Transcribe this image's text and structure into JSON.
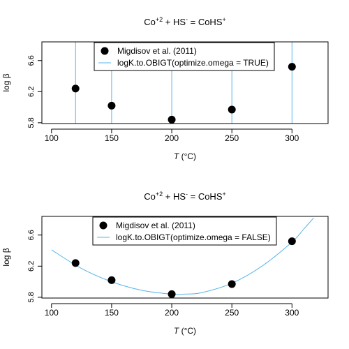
{
  "chart_data": [
    {
      "type": "scatter",
      "title": {
        "base1": "Co",
        "sup1": "+2",
        "mid": " + HS",
        "sup2": "-",
        "mid2": " = CoHS",
        "sup3": "+"
      },
      "xlabel": {
        "italic": "T",
        "rest": " (°C)"
      },
      "ylabel": "log β",
      "xlim": [
        92,
        330
      ],
      "ylim": [
        5.79,
        6.84
      ],
      "xticks": [
        "100",
        "150",
        "200",
        "250",
        "300"
      ],
      "yticks": [
        "5.8",
        "6.2",
        "6.6"
      ],
      "legend": {
        "position": "top-center",
        "entries": [
          "Migdisov et al. (2011)",
          "logK.to.OBIGT(optimize.omega = TRUE)"
        ]
      },
      "series": [
        {
          "name": "Migdisov et al. (2011)",
          "kind": "points",
          "x": [
            120,
            150,
            200,
            250,
            300
          ],
          "y": [
            6.24,
            6.02,
            5.84,
            5.97,
            6.52
          ]
        },
        {
          "name": "logK.to.OBIGT(optimize.omega = TRUE)",
          "kind": "vlines",
          "x": [
            120,
            150,
            200,
            250,
            300
          ]
        }
      ]
    },
    {
      "type": "scatter",
      "title": {
        "base1": "Co",
        "sup1": "+2",
        "mid": " + HS",
        "sup2": "-",
        "mid2": " = CoHS",
        "sup3": "+"
      },
      "xlabel": {
        "italic": "T",
        "rest": " (°C)"
      },
      "ylabel": "log β",
      "xlim": [
        92,
        330
      ],
      "ylim": [
        5.79,
        6.84
      ],
      "xticks": [
        "100",
        "150",
        "200",
        "250",
        "300"
      ],
      "yticks": [
        "5.8",
        "6.2",
        "6.6"
      ],
      "legend": {
        "position": "top-center",
        "entries": [
          "Migdisov et al. (2011)",
          "logK.to.OBIGT(optimize.omega = FALSE)"
        ]
      },
      "series": [
        {
          "name": "Migdisov et al. (2011)",
          "kind": "points",
          "x": [
            120,
            150,
            200,
            250,
            300
          ],
          "y": [
            6.24,
            6.02,
            5.84,
            5.97,
            6.52
          ]
        },
        {
          "name": "logK.to.OBIGT(optimize.omega = FALSE)",
          "kind": "curve",
          "x": [
            100,
            125,
            150,
            175,
            200,
            210,
            225,
            250,
            275,
            300,
            310,
            318
          ],
          "y": [
            6.41,
            6.17,
            6.0,
            5.89,
            5.84,
            5.84,
            5.86,
            5.98,
            6.2,
            6.51,
            6.68,
            6.82
          ]
        }
      ]
    }
  ],
  "colors": {
    "points": "#000000",
    "line": "#56B4E9",
    "axis": "#000000"
  }
}
